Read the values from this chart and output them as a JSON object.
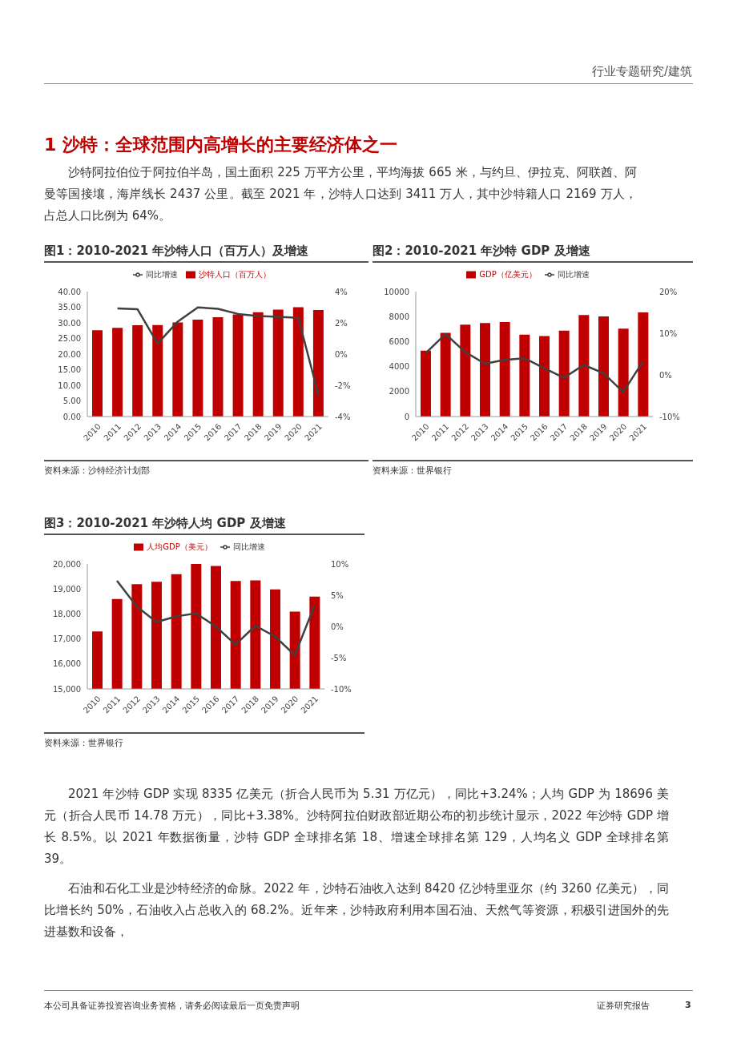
{
  "chart_data": [
    {
      "type": "other",
      "title": "1 沙特：全球范围内高增长的主要经济体之一",
      "annotations": [
        "行业专题研究/建筑",
        "沙特阿拉伯位于阿拉伯半岛，国土面积 225 万平方公里，平均海拔 665 米，与约旦、伊拉克、阿联酋、阿曼等国接壤，海岸线长 2437 公里。截至 2021 年，沙特人口达到 3411 万人，其中沙特籍人口 2169 万人，占总人口比例为 64%。"
      ]
    },
    {
      "type": "bar",
      "title": "图1：2010-2021 年沙特人口（百万人）及增速",
      "categories": [
        "2010",
        "2011",
        "2012",
        "2013",
        "2014",
        "2015",
        "2016",
        "2017",
        "2018",
        "2019",
        "2020",
        "2021"
      ],
      "series": [
        {
          "name": "沙特人口（百万人）",
          "color": "#c00000",
          "values": [
            27.6,
            28.4,
            29.2,
            29.3,
            30.1,
            31.0,
            31.8,
            32.7,
            33.4,
            34.2,
            35.0,
            34.1
          ]
        },
        {
          "name": "同比增速",
          "type": "line",
          "axis": "y2",
          "color": "#404040",
          "values": [
            null,
            2.92,
            2.87,
            0.67,
            2.08,
            2.99,
            2.9,
            2.57,
            2.43,
            2.38,
            2.32,
            -2.6
          ]
        }
      ],
      "ylim": [
        0,
        40
      ],
      "yticks": [
        {
          "value": 0,
          "label": "0.00"
        },
        {
          "value": 5,
          "label": "5.00"
        },
        {
          "value": 10,
          "label": "10.00"
        },
        {
          "value": 15,
          "label": "15.00"
        },
        {
          "value": 20,
          "label": "20.00"
        },
        {
          "value": 25,
          "label": "25.00"
        },
        {
          "value": 30,
          "label": "30.00"
        },
        {
          "value": 35,
          "label": "35.00"
        },
        {
          "value": 40,
          "label": "40.00"
        }
      ],
      "y2lim": [
        -4,
        4
      ],
      "y2ticks": [
        {
          "value": -4,
          "label": "-4%"
        },
        {
          "value": -2,
          "label": "-2%"
        },
        {
          "value": 0,
          "label": "0%"
        },
        {
          "value": 2,
          "label": "2%"
        },
        {
          "value": 4,
          "label": "4%"
        }
      ],
      "legend": "top",
      "marker": "none",
      "annotations": [
        "资料来源：沙特经济计划部"
      ]
    },
    {
      "type": "bar",
      "title": "图2：2010-2021 年沙特 GDP 及增速",
      "categories": [
        "2010",
        "2011",
        "2012",
        "2013",
        "2014",
        "2015",
        "2016",
        "2017",
        "2018",
        "2019",
        "2020",
        "2021"
      ],
      "series": [
        {
          "name": "GDP（亿美元）",
          "color": "#c00000",
          "values": [
            5270,
            6700,
            7360,
            7480,
            7570,
            6550,
            6440,
            6870,
            8120,
            8020,
            7040,
            8335
          ]
        },
        {
          "name": "同比增速",
          "type": "line",
          "axis": "y2",
          "color": "#404040",
          "values": [
            5.2,
            9.8,
            5.5,
            2.7,
            3.6,
            4.0,
            1.6,
            -0.7,
            2.4,
            0.4,
            -4.1,
            3.24
          ]
        }
      ],
      "ylim": [
        0,
        10000
      ],
      "yticks": [
        0,
        2000,
        4000,
        6000,
        8000,
        10000
      ],
      "y2lim": [
        -10,
        20
      ],
      "y2ticks": [
        {
          "value": -10,
          "label": "-10%"
        },
        {
          "value": 0,
          "label": "0%"
        },
        {
          "value": 10,
          "label": "10%"
        },
        {
          "value": 20,
          "label": "20%"
        }
      ],
      "legend": "top",
      "marker": "none",
      "annotations": [
        "资料来源：世界银行"
      ]
    },
    {
      "type": "bar",
      "title": "图3：2010-2021 年沙特人均 GDP 及增速",
      "categories": [
        "2010",
        "2011",
        "2012",
        "2013",
        "2014",
        "2015",
        "2016",
        "2017",
        "2018",
        "2019",
        "2020",
        "2021"
      ],
      "series": [
        {
          "name": "人均GDP（美元）",
          "color": "#c00000",
          "values": [
            17300,
            18600,
            19190,
            19290,
            19590,
            20000,
            19920,
            19320,
            19340,
            18980,
            18090,
            18696
          ]
        },
        {
          "name": "同比增速",
          "type": "line",
          "axis": "y2",
          "color": "#404040",
          "values": [
            null,
            7.3,
            3.2,
            0.7,
            1.6,
            2.1,
            0,
            -2.9,
            0.1,
            -1.6,
            -4.6,
            3.38
          ]
        }
      ],
      "ylim": [
        15000,
        20000
      ],
      "yticks": [
        {
          "value": 15000,
          "label": "15,000"
        },
        {
          "value": 16000,
          "label": "16,000"
        },
        {
          "value": 17000,
          "label": "17,000"
        },
        {
          "value": 18000,
          "label": "18,000"
        },
        {
          "value": 19000,
          "label": "19,000"
        },
        {
          "value": 20000,
          "label": "20,000"
        }
      ],
      "y2lim": [
        -10,
        10
      ],
      "y2ticks": [
        {
          "value": -10,
          "label": "-10%"
        },
        {
          "value": -5,
          "label": "-5%"
        },
        {
          "value": 0,
          "label": "0%"
        },
        {
          "value": 5,
          "label": "5%"
        },
        {
          "value": 10,
          "label": "10%"
        }
      ],
      "legend": "top",
      "marker": "none",
      "annotations": [
        "资料来源：世界银行"
      ]
    },
    {
      "type": "other",
      "annotations": [
        "2021 年沙特 GDP 实现 8335 亿美元（折合人民币为 5.31 万亿元），同比+3.24%；人均 GDP 为 18696 美元（折合人民币 14.78 万元），同比+3.38%。沙特阿拉伯财政部近期公布的初步统计显示，2022 年沙特 GDP 增长 8.5%。以 2021 年数据衡量，沙特 GDP 全球排名第 18、增速全球排名第 129，人均名义 GDP 全球排名第 39。",
        "石油和石化工业是沙特经济的命脉。2022 年，沙特石油收入达到 8420 亿沙特里亚尔（约 3260 亿美元），同比增长约 50%，石油收入占总收入的 68.2%。近年来，沙特政府利用本国石油、天然气等资源，积极引进国外的先进基数和设备，",
        "本公司具备证券投资咨询业务资格，请务必阅读最后一页免责声明",
        "证券研究报告",
        "3"
      ]
    }
  ]
}
